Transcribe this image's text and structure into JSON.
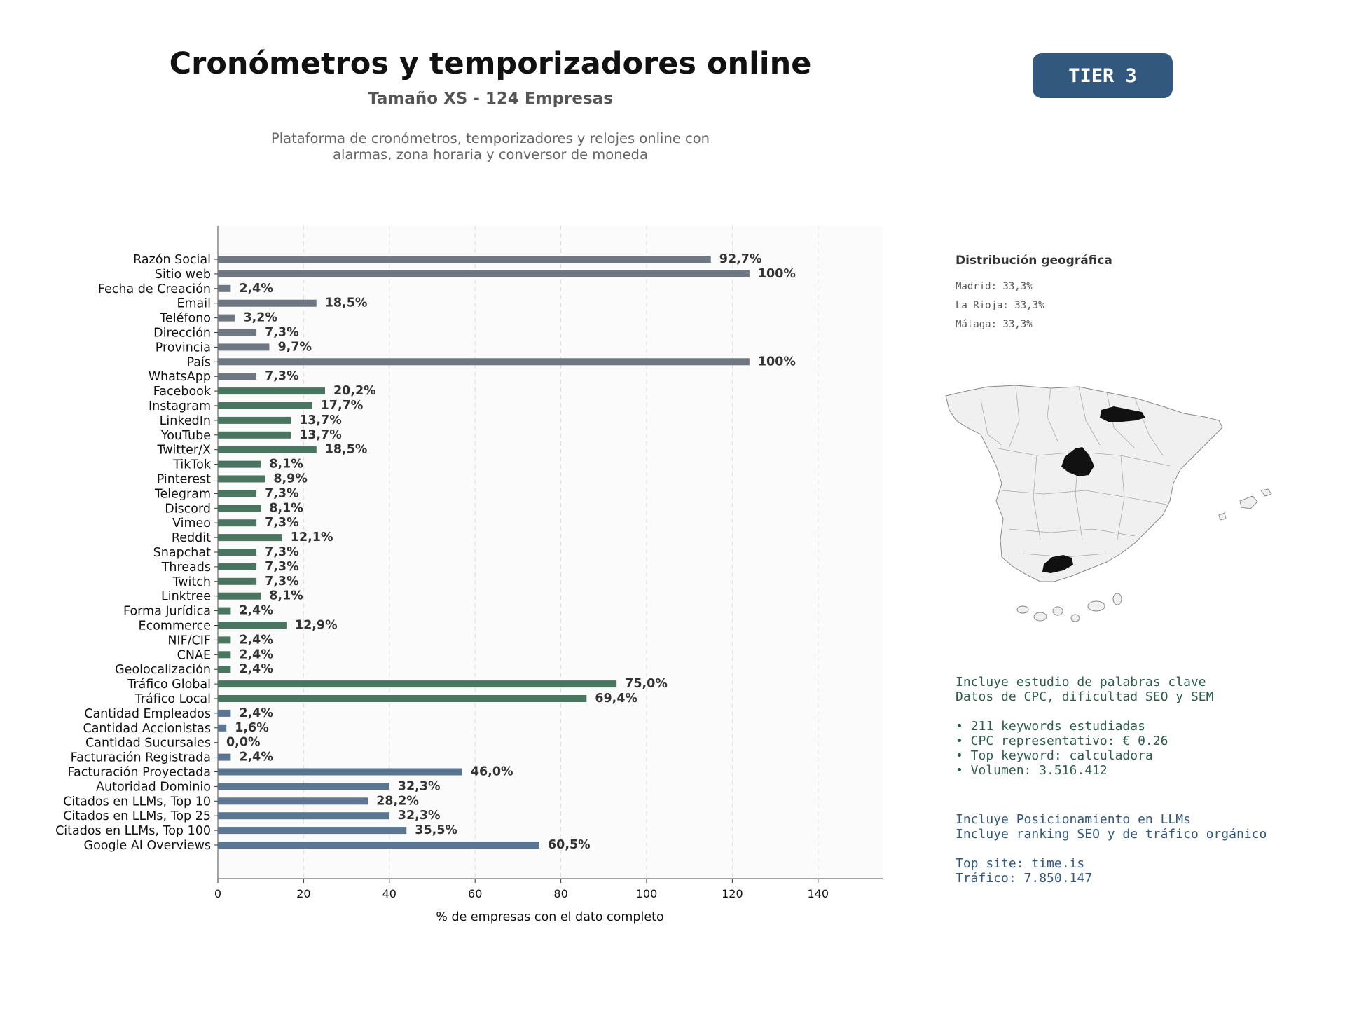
{
  "header": {
    "title": "Cronómetros y temporizadores online",
    "subtitle": "Tamaño XS - 124 Empresas",
    "description": "Plataforma de cronómetros, temporizadores y relojes online con\nalarmas, zona horaria y conversor de moneda",
    "tier": "TIER 3"
  },
  "chart_data": {
    "type": "bar",
    "orientation": "horizontal",
    "xlabel": "% de empresas con el dato completo",
    "xlim": [
      0,
      155
    ],
    "xticks": [
      0,
      20,
      40,
      60,
      80,
      100,
      120,
      140
    ],
    "grid": true,
    "categories": [
      "Razón Social",
      "Sitio web",
      "Fecha de Creación",
      "Email",
      "Teléfono",
      "Dirección",
      "Provincia",
      "País",
      "WhatsApp",
      "Facebook",
      "Instagram",
      "LinkedIn",
      "YouTube",
      "Twitter/X",
      "TikTok",
      "Pinterest",
      "Telegram",
      "Discord",
      "Vimeo",
      "Reddit",
      "Snapchat",
      "Threads",
      "Twitch",
      "Linktree",
      "Forma Jurídica",
      "Ecommerce",
      "NIF/CIF",
      "CNAE",
      "Geolocalización",
      "Tráfico Global",
      "Tráfico Local",
      "Cantidad Empleados",
      "Cantidad Accionistas",
      "Cantidad Sucursales",
      "Facturación Registrada",
      "Facturación Proyectada",
      "Autoridad Dominio",
      "Citados en LLMs, Top 10",
      "Citados en LLMs, Top 25",
      "Citados en LLMs, Top 100",
      "Google AI Overviews"
    ],
    "values": [
      115,
      124,
      3,
      23,
      4,
      9,
      12,
      124,
      9,
      25,
      22,
      17,
      17,
      23,
      10,
      11,
      9,
      10,
      9,
      15,
      9,
      9,
      9,
      10,
      3,
      16,
      3,
      3,
      3,
      93,
      86,
      3,
      2,
      0,
      3,
      57,
      40,
      35,
      40,
      44,
      75
    ],
    "labels": [
      "92,7%",
      "100%",
      "2,4%",
      "18,5%",
      "3,2%",
      "7,3%",
      "9,7%",
      "100%",
      "7,3%",
      "20,2%",
      "17,7%",
      "13,7%",
      "13,7%",
      "18,5%",
      "8,1%",
      "8,9%",
      "7,3%",
      "8,1%",
      "7,3%",
      "12,1%",
      "7,3%",
      "7,3%",
      "7,3%",
      "8,1%",
      "2,4%",
      "12,9%",
      "2,4%",
      "2,4%",
      "2,4%",
      "75,0%",
      "69,4%",
      "2,4%",
      "1,6%",
      "0,0%",
      "2,4%",
      "46,0%",
      "32,3%",
      "28,2%",
      "32,3%",
      "35,5%",
      "60,5%"
    ],
    "groups": [
      {
        "count": 9,
        "color": "#6f7782"
      },
      {
        "count": 22,
        "color": "#4a7560"
      },
      {
        "count": 10,
        "color": "#5a7690"
      }
    ]
  },
  "geo": {
    "title": "Distribución geográfica",
    "items": [
      "Madrid: 33,3%",
      "La Rioja: 33,3%",
      "Málaga: 33,3%"
    ]
  },
  "info": {
    "seo": [
      "Incluye estudio de palabras clave",
      "Datos de CPC, dificultad SEO y SEM",
      "",
      "• 211 keywords estudiadas",
      "• CPC representativo: € 0.26",
      "• Top keyword: calculadora",
      "• Volumen: 3.516.412"
    ],
    "llm": [
      "Incluye Posicionamiento en LLMs",
      "Incluye ranking SEO y de tráfico orgánico",
      "",
      "Top site: time.is",
      "Tráfico: 7.850.147"
    ]
  },
  "colors": {
    "accent": "#33587e",
    "green_text": "#2e5e4a",
    "map_fill": "#f0f0f0",
    "map_highlight": "#111111"
  }
}
